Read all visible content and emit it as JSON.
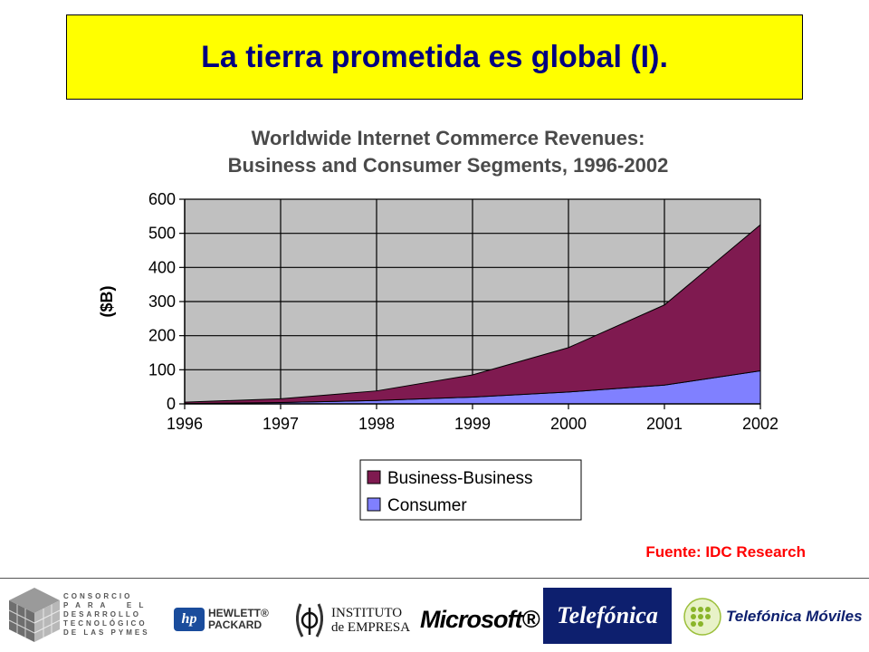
{
  "slide": {
    "title": "La tierra prometida es global (I).",
    "source": "Fuente: IDC Research"
  },
  "chart_data": {
    "type": "area",
    "stacked": true,
    "title": [
      "Worldwide Internet Commerce Revenues:",
      "Business and Consumer Segments, 1996-2002"
    ],
    "ylabel": "($B)",
    "xlabel": "",
    "x": [
      "1996",
      "1997",
      "1998",
      "1999",
      "2000",
      "2001",
      "2002"
    ],
    "ylim": [
      0,
      600
    ],
    "yticks": [
      0,
      100,
      200,
      300,
      400,
      500,
      600
    ],
    "grid": true,
    "legend_position": "bottom",
    "series": [
      {
        "name": "Consumer",
        "values": [
          1,
          4,
          10,
          20,
          35,
          55,
          97
        ],
        "color": "#8080ff"
      },
      {
        "name": "Business-Business",
        "values": [
          4,
          11,
          28,
          65,
          130,
          235,
          428
        ],
        "color": "#7f1a50"
      }
    ],
    "legend_order": [
      "Business-Business",
      "Consumer"
    ],
    "plot_background": "#c0c0c0"
  },
  "footer": {
    "consorcio": "CONSORCIO\nP A R A    E L\nDESARROLLO\nTECNOLÓGICO\nDE LAS PYMES",
    "hp_badge": "hp",
    "hp_line1": "HEWLETT®",
    "hp_line2": "PACKARD",
    "ie_line1": "INSTITUTO",
    "ie_line2": "de EMPRESA",
    "microsoft": "Microsoft®",
    "telefonica": "Telefónica",
    "telefonica_moviles": "Telefónica Móviles"
  }
}
